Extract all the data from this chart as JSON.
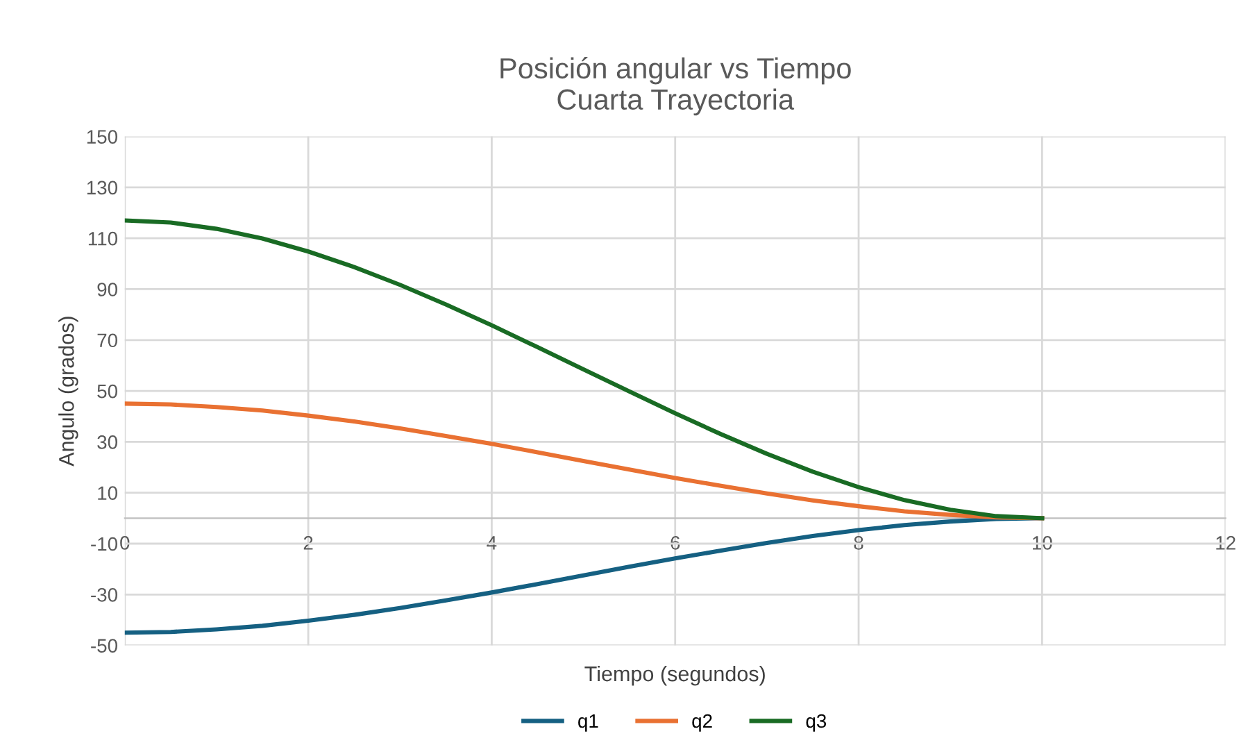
{
  "chart_data": {
    "type": "line",
    "title": "Posición angular vs Tiempo\nCuarta Trayectoria",
    "xlabel": "Tiempo (segundos)",
    "ylabel": "Angulo (grados)",
    "x": [
      0,
      0.5,
      1,
      1.5,
      2,
      2.5,
      3,
      3.5,
      4,
      4.5,
      5,
      5.5,
      6,
      6.5,
      7,
      7.5,
      8,
      8.5,
      9,
      9.5,
      10
    ],
    "series": [
      {
        "name": "q1",
        "color": "#156082",
        "values": [
          -45,
          -44.7,
          -43.7,
          -42.3,
          -40.3,
          -38.0,
          -35.3,
          -32.3,
          -29.2,
          -25.9,
          -22.5,
          -19.1,
          -15.8,
          -12.7,
          -9.7,
          -7.0,
          -4.7,
          -2.7,
          -1.3,
          -0.3,
          0
        ]
      },
      {
        "name": "q2",
        "color": "#e97132",
        "values": [
          45,
          44.7,
          43.7,
          42.3,
          40.3,
          38.0,
          35.3,
          32.3,
          29.2,
          25.9,
          22.5,
          19.1,
          15.8,
          12.7,
          9.7,
          7.0,
          4.7,
          2.7,
          1.3,
          0.3,
          0
        ]
      },
      {
        "name": "q3",
        "color": "#196b24",
        "values": [
          117,
          116.2,
          113.7,
          109.9,
          104.8,
          98.7,
          91.7,
          84.0,
          75.8,
          67.2,
          58.5,
          49.8,
          41.2,
          33.0,
          25.3,
          18.3,
          12.2,
          7.1,
          3.3,
          0.8,
          0
        ]
      }
    ],
    "xlim": [
      0,
      12
    ],
    "xticks": [
      0,
      2,
      4,
      6,
      8,
      10,
      12
    ],
    "ylim": [
      -50,
      150
    ],
    "yticks": [
      -50,
      -30,
      -10,
      10,
      30,
      50,
      70,
      90,
      110,
      130,
      150
    ],
    "grid": true,
    "legend": "bottom",
    "marker": "none",
    "line_style": "solid"
  }
}
